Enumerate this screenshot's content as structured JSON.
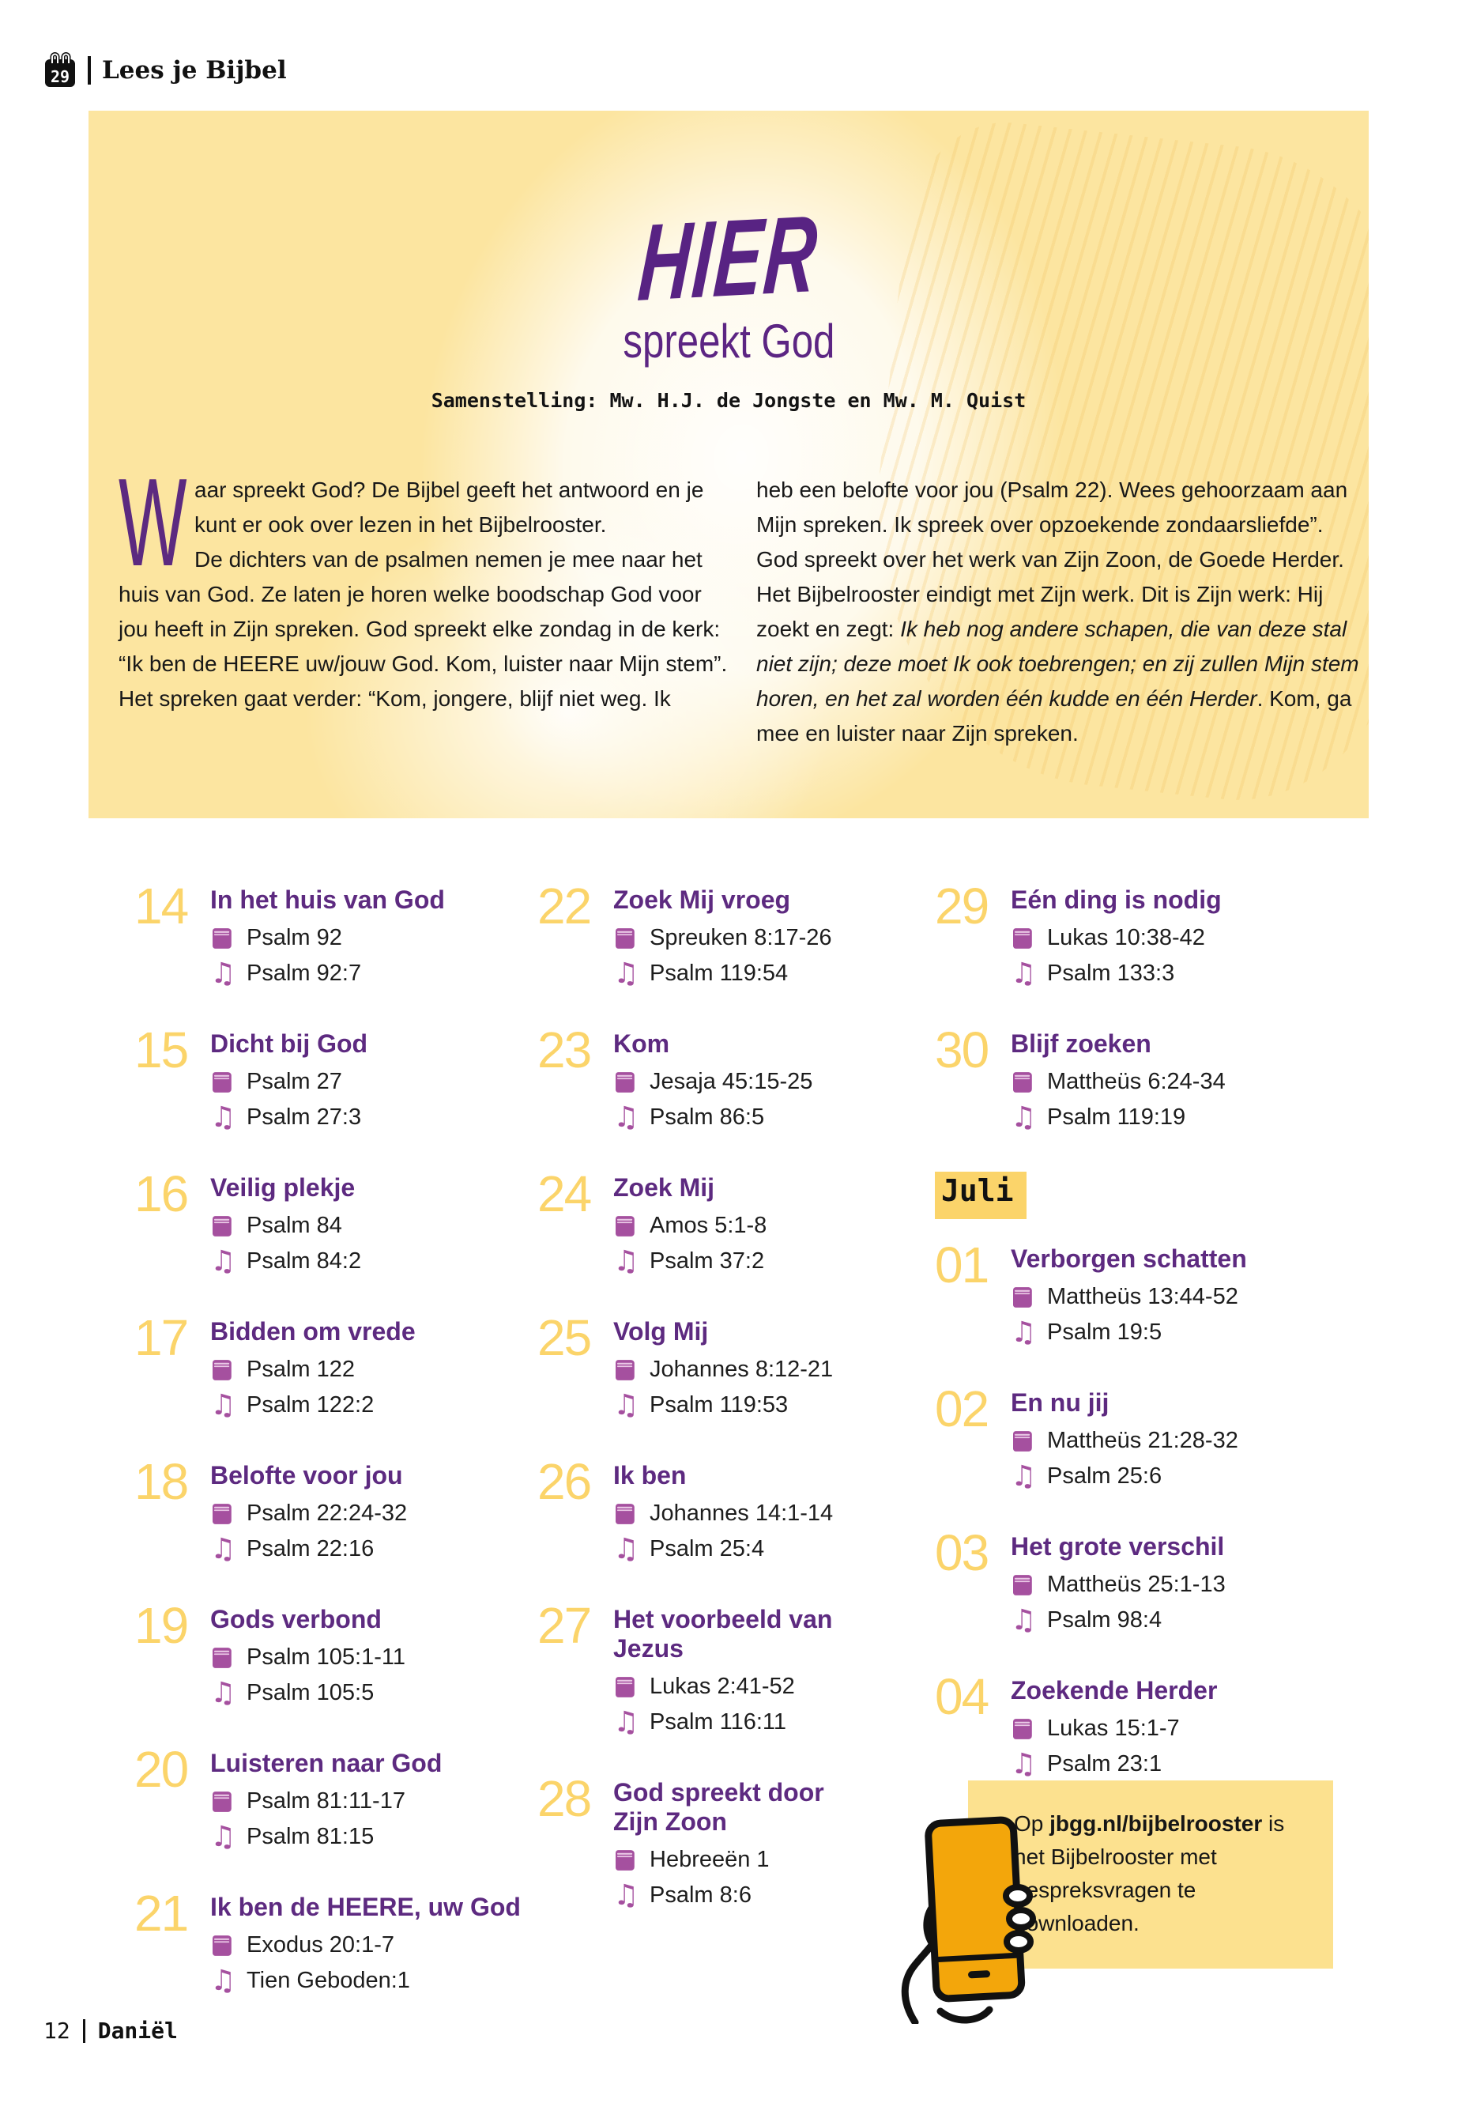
{
  "header": {
    "brand": "Lees je Bijbel",
    "calendar_icon": "calendar-29-icon",
    "calendar_day": "29"
  },
  "banner": {
    "script_title": "HIER",
    "subtitle": "spreekt God",
    "byline": "Samenstelling: Mw. H.J. de Jongste en Mw. M. Quist",
    "intro": {
      "dropcap": "W",
      "left": [
        "aar spreekt God? De Bijbel geeft het antwoord en je kunt er ook over lezen in het Bijbelrooster.",
        "De dichters van de psalmen nemen je mee naar het huis van God. Ze laten je horen welke boodschap God voor jou heeft in Zijn spreken. God spreekt elke zondag in de kerk: “Ik ben de HEERE uw/jouw God. Kom, luister naar Mijn stem”.",
        "Het spreken gaat verder: “Kom, jongere, blijf niet weg. Ik"
      ],
      "right": [
        "heb een belofte voor jou (Psalm 22). Wees gehoorzaam aan Mijn spreken. Ik spreek over opzoekende zondaarsliefde”. God spreekt over het werk van Zijn Zoon, de Goede Herder.",
        "Het Bijbelrooster eindigt met Zijn werk. Dit is Zijn werk: Hij zoekt en zegt: ",
        "Ik heb nog andere schapen, die van deze stal niet zijn; deze moet Ik ook toebrengen; en zij zullen Mijn stem horen, en het zal worden één kudde en één Herder",
        ". Kom, ga mee en luister naar Zijn spreken."
      ]
    }
  },
  "schedule": {
    "icons": {
      "reading": "book-icon",
      "song": "music-note-icon"
    },
    "columns": [
      [
        {
          "day": "14",
          "title": "In het huis van God",
          "reading": "Psalm 92",
          "song": "Psalm 92:7"
        },
        {
          "day": "15",
          "title": "Dicht bij God",
          "reading": "Psalm 27",
          "song": "Psalm 27:3"
        },
        {
          "day": "16",
          "title": "Veilig plekje",
          "reading": "Psalm 84",
          "song": "Psalm 84:2"
        },
        {
          "day": "17",
          "title": "Bidden om vrede",
          "reading": "Psalm 122",
          "song": "Psalm 122:2"
        },
        {
          "day": "18",
          "title": "Belofte voor jou",
          "reading": "Psalm 22:24-32",
          "song": "Psalm 22:16"
        },
        {
          "day": "19",
          "title": "Gods verbond",
          "reading": "Psalm 105:1-11",
          "song": "Psalm 105:5"
        },
        {
          "day": "20",
          "title": "Luisteren naar God",
          "reading": "Psalm 81:11-17",
          "song": "Psalm 81:15"
        },
        {
          "day": "21",
          "title": "Ik ben de HEERE, uw God",
          "reading": "Exodus 20:1-7",
          "song": "Tien Geboden:1"
        }
      ],
      [
        {
          "day": "22",
          "title": "Zoek Mij vroeg",
          "reading": "Spreuken 8:17-26",
          "song": "Psalm 119:54"
        },
        {
          "day": "23",
          "title": "Kom",
          "reading": "Jesaja 45:15-25",
          "song": "Psalm 86:5"
        },
        {
          "day": "24",
          "title": "Zoek Mij",
          "reading": "Amos 5:1-8",
          "song": "Psalm 37:2"
        },
        {
          "day": "25",
          "title": "Volg Mij",
          "reading": "Johannes 8:12-21",
          "song": "Psalm 119:53"
        },
        {
          "day": "26",
          "title": "Ik ben",
          "reading": "Johannes 14:1-14",
          "song": "Psalm 25:4"
        },
        {
          "day": "27",
          "title": "Het voorbeeld van Jezus",
          "reading": "Lukas 2:41-52",
          "song": "Psalm 116:11"
        },
        {
          "day": "28",
          "title": "God spreekt door Zijn Zoon",
          "reading": "Hebreeën 1",
          "song": "Psalm 8:6"
        }
      ],
      [
        {
          "day": "29",
          "title": "Eén ding is nodig",
          "reading": "Lukas 10:38-42",
          "song": "Psalm 133:3"
        },
        {
          "day": "30",
          "title": "Blijf zoeken",
          "reading": "Mattheüs 6:24-34",
          "song": "Psalm 119:19"
        },
        {
          "divider": "Juli"
        },
        {
          "day": "01",
          "title": "Verborgen schatten",
          "reading": "Mattheüs 13:44-52",
          "song": "Psalm 19:5"
        },
        {
          "day": "02",
          "title": "En nu jij",
          "reading": "Mattheüs 21:28-32",
          "song": "Psalm 25:6"
        },
        {
          "day": "03",
          "title": "Het grote verschil",
          "reading": "Mattheüs 25:1-13",
          "song": "Psalm 98:4"
        },
        {
          "day": "04",
          "title": "Zoekende Herder",
          "reading": "Lukas 15:1-7",
          "song": "Psalm 23:1"
        }
      ]
    ]
  },
  "infobox": {
    "prefix": "Op ",
    "link": "jbgg.nl/bijbelrooster",
    "rest": " is het Bijbelrooster met gespreksvragen te downloaden.",
    "icon": "hand-holding-phone-icon"
  },
  "footer": {
    "page_number": "12",
    "magazine": "Daniël"
  },
  "colors": {
    "banner_bg": "#fce5a0",
    "day_number_yellow": "#fbd46a",
    "title_purple": "#5d2a80",
    "script_purple": "#582383",
    "icon_magenta": "#a5509f",
    "infobox_bg": "#fce18f",
    "phone_orange": "#f3a60b",
    "text_black": "#1d1d1d"
  }
}
